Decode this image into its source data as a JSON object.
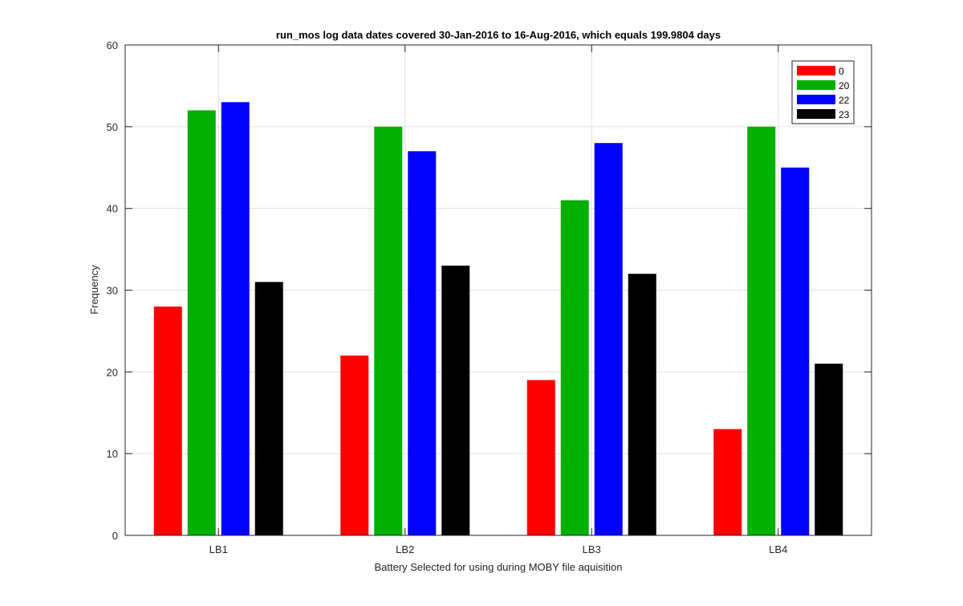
{
  "chart_data": {
    "type": "bar",
    "title": "run_mos log data  dates covered 30-Jan-2016 to 16-Aug-2016, which equals 199.9804 days",
    "xlabel": "Battery Selected for using during MOBY file aquisition",
    "ylabel": "Frequency",
    "categories": [
      "LB1",
      "LB2",
      "LB3",
      "LB4"
    ],
    "ylim": [
      0,
      60
    ],
    "yticks": [
      0,
      10,
      20,
      30,
      40,
      50,
      60
    ],
    "grid": true,
    "legend_position": "top-right",
    "series": [
      {
        "name": "0",
        "color": "#ff0000",
        "values": [
          28,
          22,
          19,
          13
        ]
      },
      {
        "name": "20",
        "color": "#00b000",
        "values": [
          52,
          50,
          41,
          50
        ]
      },
      {
        "name": "22",
        "color": "#0000ff",
        "values": [
          53,
          47,
          48,
          45
        ]
      },
      {
        "name": "23",
        "color": "#000000",
        "values": [
          31,
          33,
          32,
          21
        ]
      }
    ]
  }
}
